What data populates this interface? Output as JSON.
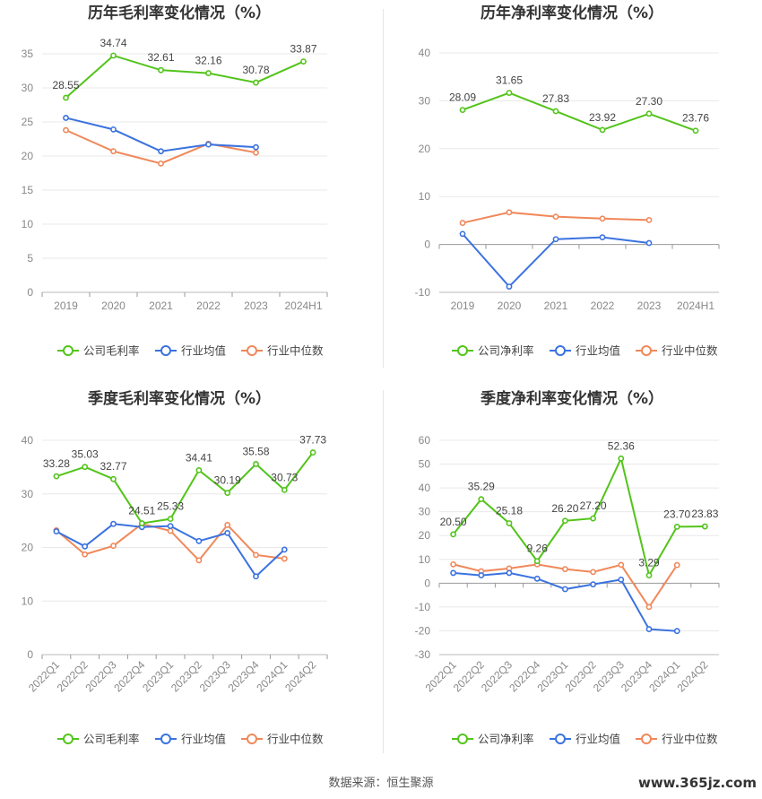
{
  "source_label": "数据来源：恒生聚源",
  "watermark": "www.365jz.com",
  "colors": {
    "company": "#52c41a",
    "avg": "#3a72e0",
    "median": "#f0885a",
    "grid": "#e8e8e8",
    "axis": "#888888"
  },
  "chart_data": [
    {
      "type": "line",
      "title": "历年毛利率变化情况（%）",
      "categories": [
        "2019",
        "2020",
        "2021",
        "2022",
        "2023",
        "2024H1"
      ],
      "ylim": [
        0,
        35
      ],
      "yticks": [
        0,
        5,
        10,
        15,
        20,
        25,
        30,
        35
      ],
      "rotate_x": false,
      "series": [
        {
          "name": "公司毛利率",
          "role": "company",
          "values": [
            28.55,
            34.74,
            32.61,
            32.16,
            30.78,
            33.87
          ],
          "labels": [
            "28.55",
            "34.74",
            "32.61",
            "32.16",
            "30.78",
            "33.87"
          ]
        },
        {
          "name": "行业均值",
          "role": "avg",
          "values": [
            25.6,
            23.9,
            20.7,
            21.7,
            21.3,
            null
          ]
        },
        {
          "name": "行业中位数",
          "role": "median",
          "values": [
            23.8,
            20.7,
            18.9,
            21.8,
            20.5,
            null
          ]
        }
      ]
    },
    {
      "type": "line",
      "title": "历年净利率变化情况（%）",
      "categories": [
        "2019",
        "2020",
        "2021",
        "2022",
        "2023",
        "2024H1"
      ],
      "ylim": [
        -10,
        40
      ],
      "yticks": [
        -10,
        0,
        10,
        20,
        30,
        40
      ],
      "rotate_x": false,
      "series": [
        {
          "name": "公司净利率",
          "role": "company",
          "values": [
            28.09,
            31.65,
            27.83,
            23.92,
            27.3,
            23.76
          ],
          "labels": [
            "28.09",
            "31.65",
            "27.83",
            "23.92",
            "27.30",
            "23.76"
          ]
        },
        {
          "name": "行业均值",
          "role": "avg",
          "values": [
            2.2,
            -8.8,
            1.1,
            1.5,
            0.3,
            null
          ]
        },
        {
          "name": "行业中位数",
          "role": "median",
          "values": [
            4.5,
            6.7,
            5.8,
            5.4,
            5.1,
            null
          ]
        }
      ]
    },
    {
      "type": "line",
      "title": "季度毛利率变化情况（%）",
      "categories": [
        "2022Q1",
        "2022Q2",
        "2022Q3",
        "2022Q4",
        "2023Q1",
        "2023Q2",
        "2023Q3",
        "2023Q4",
        "2024Q1",
        "2024Q2"
      ],
      "ylim": [
        0,
        40
      ],
      "yticks": [
        0,
        10,
        20,
        30,
        40
      ],
      "rotate_x": true,
      "series": [
        {
          "name": "公司毛利率",
          "role": "company",
          "values": [
            33.28,
            35.03,
            32.77,
            24.51,
            25.33,
            34.41,
            30.19,
            35.58,
            30.73,
            37.73
          ],
          "labels": [
            "33.28",
            "35.03",
            "32.77",
            "24.51",
            "25.33",
            "34.41",
            "30.19",
            "35.58",
            "30.73",
            "37.73"
          ]
        },
        {
          "name": "行业均值",
          "role": "avg",
          "values": [
            23.0,
            20.2,
            24.4,
            23.8,
            24.0,
            21.2,
            22.7,
            14.6,
            19.6,
            null
          ]
        },
        {
          "name": "行业中位数",
          "role": "median",
          "values": [
            23.2,
            18.7,
            20.3,
            24.4,
            23.1,
            17.6,
            24.2,
            18.6,
            17.9,
            null
          ]
        }
      ]
    },
    {
      "type": "line",
      "title": "季度净利率变化情况（%）",
      "categories": [
        "2022Q1",
        "2022Q2",
        "2022Q3",
        "2022Q4",
        "2023Q1",
        "2023Q2",
        "2023Q3",
        "2023Q4",
        "2024Q1",
        "2024Q2"
      ],
      "ylim": [
        -30,
        60
      ],
      "yticks": [
        -30,
        -20,
        -10,
        0,
        10,
        20,
        30,
        40,
        50,
        60
      ],
      "rotate_x": true,
      "series": [
        {
          "name": "公司净利率",
          "role": "company",
          "values": [
            20.5,
            35.29,
            25.18,
            9.26,
            26.2,
            27.2,
            52.36,
            3.29,
            23.7,
            23.83
          ],
          "labels": [
            "20.50",
            "35.29",
            "25.18",
            "9.26",
            "26.20",
            "27.20",
            "52.36",
            "3.29",
            "23.70",
            "23.83"
          ]
        },
        {
          "name": "行业均值",
          "role": "avg",
          "values": [
            4.3,
            3.3,
            4.3,
            1.9,
            -2.5,
            -0.5,
            1.5,
            -19.3,
            -20.1,
            null
          ]
        },
        {
          "name": "行业中位数",
          "role": "median",
          "values": [
            7.9,
            5.0,
            6.2,
            7.9,
            5.9,
            4.7,
            7.7,
            -10.0,
            7.6,
            null
          ]
        }
      ]
    }
  ]
}
